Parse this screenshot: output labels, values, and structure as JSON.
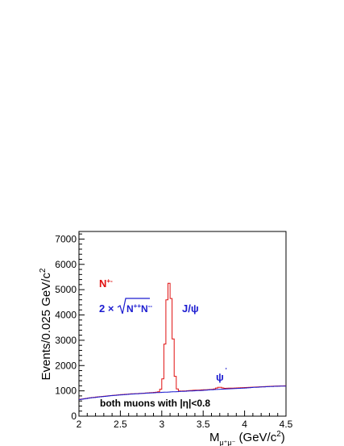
{
  "chart_data": {
    "type": "line",
    "title": "",
    "xlabel_main": "M",
    "xlabel_sub": "μ⁺μ⁻",
    "xlabel_units_open": " (GeV/c",
    "xlabel_units_sup": "2",
    "xlabel_units_close": ")",
    "ylabel_main": "Events/0.025 GeV/c",
    "ylabel_sup": "2",
    "xlim": [
      2.0,
      4.5
    ],
    "ylim": [
      0,
      7300
    ],
    "xticks": [
      2,
      2.5,
      3,
      3.5,
      4,
      4.5
    ],
    "xtick_labels": [
      "2",
      "2.5",
      "3",
      "3.5",
      "4",
      "4.5"
    ],
    "yticks": [
      0,
      1000,
      2000,
      3000,
      4000,
      5000,
      6000,
      7000
    ],
    "ytick_labels": [
      "0",
      "1000",
      "2000",
      "3000",
      "4000",
      "5000",
      "6000",
      "7000"
    ],
    "grid": false,
    "bin_width": 0.025,
    "annotations": {
      "n_label_main": "N",
      "n_label_sup": "+-",
      "formula_prefix": "2 × ",
      "formula_radicand_a": "N",
      "formula_radicand_a_sup": "++",
      "formula_radicand_b": "N",
      "formula_radicand_b_sup": "--",
      "jpsi_label": "J/ψ",
      "psi2s_label": "ψ",
      "psi2s_prime": "'",
      "cut_note": "both muons with |η|<0.8"
    },
    "series": [
      {
        "name": "N+-",
        "color": "#e01010",
        "x": [
          2.0,
          2.125,
          2.25,
          2.375,
          2.5,
          2.625,
          2.75,
          2.875,
          2.95,
          2.975,
          3.0,
          3.025,
          3.05,
          3.075,
          3.1,
          3.125,
          3.15,
          3.175,
          3.2,
          3.25,
          3.375,
          3.5,
          3.625,
          3.675,
          3.7,
          3.725,
          3.75,
          3.875,
          4.0,
          4.125,
          4.25,
          4.375,
          4.5
        ],
        "y": [
          660,
          720,
          770,
          810,
          850,
          880,
          900,
          930,
          950,
          980,
          1150,
          1800,
          3900,
          5300,
          5200,
          4100,
          2000,
          1150,
          1000,
          990,
          1020,
          1040,
          1060,
          1130,
          1150,
          1130,
          1100,
          1110,
          1130,
          1150,
          1170,
          1190,
          1200
        ]
      },
      {
        "name": "2 × sqrt(N++ N--)",
        "color": "#1c1cd0",
        "x": [
          2.0,
          2.125,
          2.25,
          2.375,
          2.5,
          2.625,
          2.75,
          2.875,
          3.0,
          3.125,
          3.25,
          3.375,
          3.5,
          3.625,
          3.75,
          3.875,
          4.0,
          4.125,
          4.25,
          4.375,
          4.5
        ],
        "y": [
          650,
          715,
          760,
          805,
          840,
          870,
          895,
          920,
          940,
          960,
          980,
          1000,
          1020,
          1050,
          1070,
          1090,
          1110,
          1140,
          1160,
          1180,
          1190
        ]
      }
    ]
  }
}
